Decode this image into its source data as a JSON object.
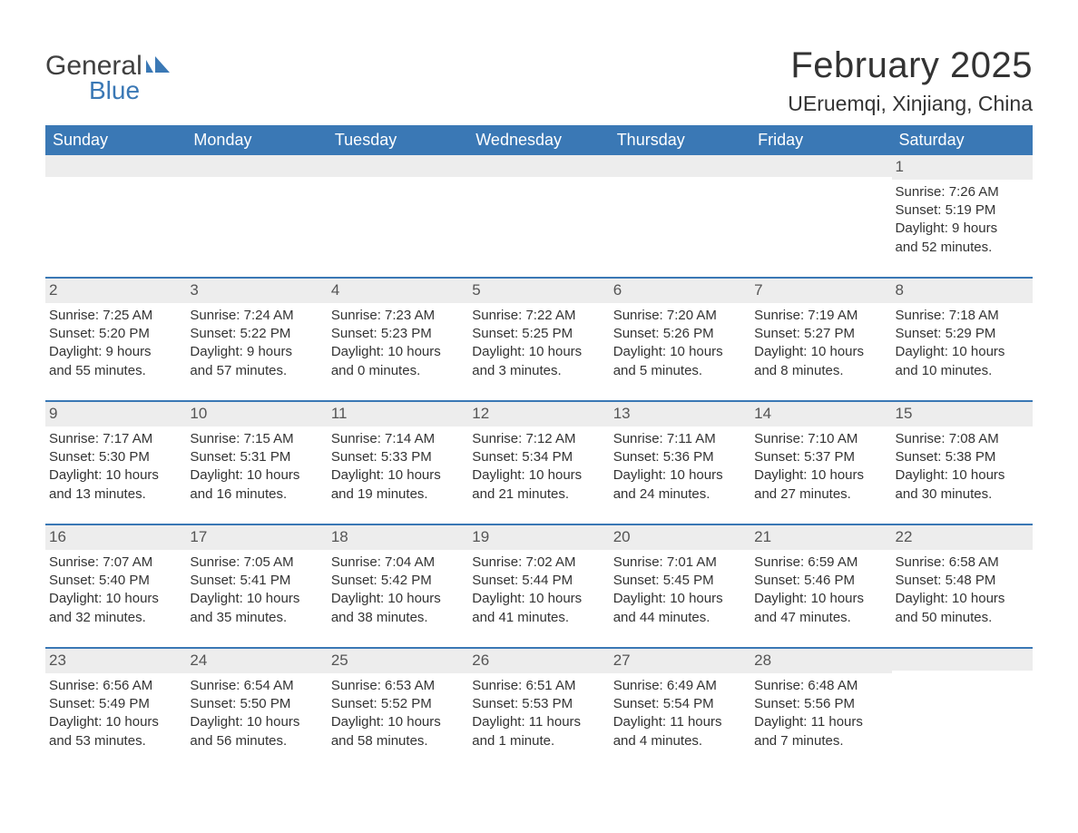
{
  "brand": {
    "name_part1": "General",
    "name_part2": "Blue",
    "text_color": "#404040",
    "blue_color": "#3a78b5"
  },
  "header": {
    "month_title": "February 2025",
    "location": "UEruemqi, Xinjiang, China"
  },
  "style": {
    "header_bg": "#3a78b5",
    "header_text_color": "#ffffff",
    "daynum_bg": "#ededed",
    "body_text_color": "#333333",
    "week_border_color": "#3a78b5",
    "page_bg": "#ffffff",
    "weekday_fontsize": 18,
    "body_fontsize": 15,
    "title_fontsize": 40,
    "location_fontsize": 23
  },
  "weekdays": [
    "Sunday",
    "Monday",
    "Tuesday",
    "Wednesday",
    "Thursday",
    "Friday",
    "Saturday"
  ],
  "weeks": [
    [
      null,
      null,
      null,
      null,
      null,
      null,
      {
        "n": "1",
        "sunrise": "Sunrise: 7:26 AM",
        "sunset": "Sunset: 5:19 PM",
        "day1": "Daylight: 9 hours",
        "day2": "and 52 minutes."
      }
    ],
    [
      {
        "n": "2",
        "sunrise": "Sunrise: 7:25 AM",
        "sunset": "Sunset: 5:20 PM",
        "day1": "Daylight: 9 hours",
        "day2": "and 55 minutes."
      },
      {
        "n": "3",
        "sunrise": "Sunrise: 7:24 AM",
        "sunset": "Sunset: 5:22 PM",
        "day1": "Daylight: 9 hours",
        "day2": "and 57 minutes."
      },
      {
        "n": "4",
        "sunrise": "Sunrise: 7:23 AM",
        "sunset": "Sunset: 5:23 PM",
        "day1": "Daylight: 10 hours",
        "day2": "and 0 minutes."
      },
      {
        "n": "5",
        "sunrise": "Sunrise: 7:22 AM",
        "sunset": "Sunset: 5:25 PM",
        "day1": "Daylight: 10 hours",
        "day2": "and 3 minutes."
      },
      {
        "n": "6",
        "sunrise": "Sunrise: 7:20 AM",
        "sunset": "Sunset: 5:26 PM",
        "day1": "Daylight: 10 hours",
        "day2": "and 5 minutes."
      },
      {
        "n": "7",
        "sunrise": "Sunrise: 7:19 AM",
        "sunset": "Sunset: 5:27 PM",
        "day1": "Daylight: 10 hours",
        "day2": "and 8 minutes."
      },
      {
        "n": "8",
        "sunrise": "Sunrise: 7:18 AM",
        "sunset": "Sunset: 5:29 PM",
        "day1": "Daylight: 10 hours",
        "day2": "and 10 minutes."
      }
    ],
    [
      {
        "n": "9",
        "sunrise": "Sunrise: 7:17 AM",
        "sunset": "Sunset: 5:30 PM",
        "day1": "Daylight: 10 hours",
        "day2": "and 13 minutes."
      },
      {
        "n": "10",
        "sunrise": "Sunrise: 7:15 AM",
        "sunset": "Sunset: 5:31 PM",
        "day1": "Daylight: 10 hours",
        "day2": "and 16 minutes."
      },
      {
        "n": "11",
        "sunrise": "Sunrise: 7:14 AM",
        "sunset": "Sunset: 5:33 PM",
        "day1": "Daylight: 10 hours",
        "day2": "and 19 minutes."
      },
      {
        "n": "12",
        "sunrise": "Sunrise: 7:12 AM",
        "sunset": "Sunset: 5:34 PM",
        "day1": "Daylight: 10 hours",
        "day2": "and 21 minutes."
      },
      {
        "n": "13",
        "sunrise": "Sunrise: 7:11 AM",
        "sunset": "Sunset: 5:36 PM",
        "day1": "Daylight: 10 hours",
        "day2": "and 24 minutes."
      },
      {
        "n": "14",
        "sunrise": "Sunrise: 7:10 AM",
        "sunset": "Sunset: 5:37 PM",
        "day1": "Daylight: 10 hours",
        "day2": "and 27 minutes."
      },
      {
        "n": "15",
        "sunrise": "Sunrise: 7:08 AM",
        "sunset": "Sunset: 5:38 PM",
        "day1": "Daylight: 10 hours",
        "day2": "and 30 minutes."
      }
    ],
    [
      {
        "n": "16",
        "sunrise": "Sunrise: 7:07 AM",
        "sunset": "Sunset: 5:40 PM",
        "day1": "Daylight: 10 hours",
        "day2": "and 32 minutes."
      },
      {
        "n": "17",
        "sunrise": "Sunrise: 7:05 AM",
        "sunset": "Sunset: 5:41 PM",
        "day1": "Daylight: 10 hours",
        "day2": "and 35 minutes."
      },
      {
        "n": "18",
        "sunrise": "Sunrise: 7:04 AM",
        "sunset": "Sunset: 5:42 PM",
        "day1": "Daylight: 10 hours",
        "day2": "and 38 minutes."
      },
      {
        "n": "19",
        "sunrise": "Sunrise: 7:02 AM",
        "sunset": "Sunset: 5:44 PM",
        "day1": "Daylight: 10 hours",
        "day2": "and 41 minutes."
      },
      {
        "n": "20",
        "sunrise": "Sunrise: 7:01 AM",
        "sunset": "Sunset: 5:45 PM",
        "day1": "Daylight: 10 hours",
        "day2": "and 44 minutes."
      },
      {
        "n": "21",
        "sunrise": "Sunrise: 6:59 AM",
        "sunset": "Sunset: 5:46 PM",
        "day1": "Daylight: 10 hours",
        "day2": "and 47 minutes."
      },
      {
        "n": "22",
        "sunrise": "Sunrise: 6:58 AM",
        "sunset": "Sunset: 5:48 PM",
        "day1": "Daylight: 10 hours",
        "day2": "and 50 minutes."
      }
    ],
    [
      {
        "n": "23",
        "sunrise": "Sunrise: 6:56 AM",
        "sunset": "Sunset: 5:49 PM",
        "day1": "Daylight: 10 hours",
        "day2": "and 53 minutes."
      },
      {
        "n": "24",
        "sunrise": "Sunrise: 6:54 AM",
        "sunset": "Sunset: 5:50 PM",
        "day1": "Daylight: 10 hours",
        "day2": "and 56 minutes."
      },
      {
        "n": "25",
        "sunrise": "Sunrise: 6:53 AM",
        "sunset": "Sunset: 5:52 PM",
        "day1": "Daylight: 10 hours",
        "day2": "and 58 minutes."
      },
      {
        "n": "26",
        "sunrise": "Sunrise: 6:51 AM",
        "sunset": "Sunset: 5:53 PM",
        "day1": "Daylight: 11 hours",
        "day2": "and 1 minute."
      },
      {
        "n": "27",
        "sunrise": "Sunrise: 6:49 AM",
        "sunset": "Sunset: 5:54 PM",
        "day1": "Daylight: 11 hours",
        "day2": "and 4 minutes."
      },
      {
        "n": "28",
        "sunrise": "Sunrise: 6:48 AM",
        "sunset": "Sunset: 5:56 PM",
        "day1": "Daylight: 11 hours",
        "day2": "and 7 minutes."
      },
      null
    ]
  ]
}
